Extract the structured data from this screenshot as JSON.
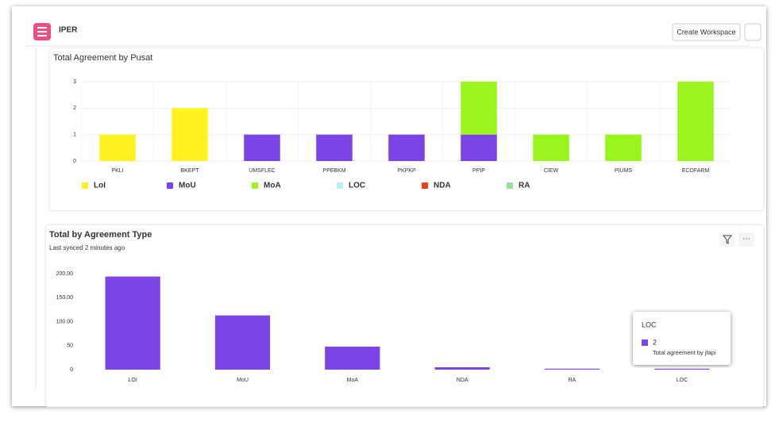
{
  "header": {
    "title": "IPER",
    "button": "Create Workspace"
  },
  "chart_data": [
    {
      "type": "bar",
      "stacked": true,
      "title": "Total Agreement by Pusat",
      "categories": [
        "PKLI",
        "BKEPT",
        "UMSFLEC",
        "PPEBKM",
        "PKPKP",
        "PPIP",
        "CIEW",
        "PIUMS",
        "ECOFARM"
      ],
      "series": [
        {
          "name": "LoI",
          "color": "#fff21e",
          "values": [
            1,
            2,
            0,
            0,
            0,
            0,
            0,
            0,
            0
          ]
        },
        {
          "name": "MoU",
          "color": "#7b44e4",
          "values": [
            0,
            0,
            1,
            1,
            1,
            1,
            0,
            0,
            0
          ]
        },
        {
          "name": "MoA",
          "color": "#99f51c",
          "values": [
            0,
            0,
            0,
            0,
            0,
            2,
            1,
            1,
            3
          ]
        },
        {
          "name": "LOC",
          "color": "#b9f1f7",
          "values": [
            0,
            0,
            0,
            0,
            0,
            0,
            0,
            0,
            0
          ]
        },
        {
          "name": "NDA",
          "color": "#e8431f",
          "values": [
            0,
            0,
            0,
            0,
            0,
            0,
            0,
            0,
            0
          ]
        },
        {
          "name": "RA",
          "color": "#94e394",
          "values": [
            0,
            0,
            0,
            0,
            0,
            0,
            0,
            0,
            0
          ]
        }
      ],
      "ylim": [
        0,
        3
      ],
      "yticks": [
        0,
        1,
        2,
        3
      ],
      "grid": true,
      "legend": "bottom"
    },
    {
      "type": "bar",
      "title": "Total by Agreement Type",
      "subtitle": "Last synced 2 minutes ago",
      "categories": [
        "LOI",
        "MoU",
        "MoA",
        "NDA",
        "RA",
        "LOC"
      ],
      "values": [
        194,
        113,
        48,
        5,
        2,
        2
      ],
      "color": "#7b44e4",
      "ylim": [
        0,
        200
      ],
      "yticks": [
        0,
        50,
        {
          "value": 100,
          "label": "100.00"
        },
        {
          "value": 150,
          "label": "150.00"
        },
        {
          "value": 200,
          "label": "200.00"
        }
      ],
      "grid": false
    }
  ],
  "tooltip": {
    "title": "LOC",
    "value": "2",
    "label": "Total agreement by jfapi"
  }
}
